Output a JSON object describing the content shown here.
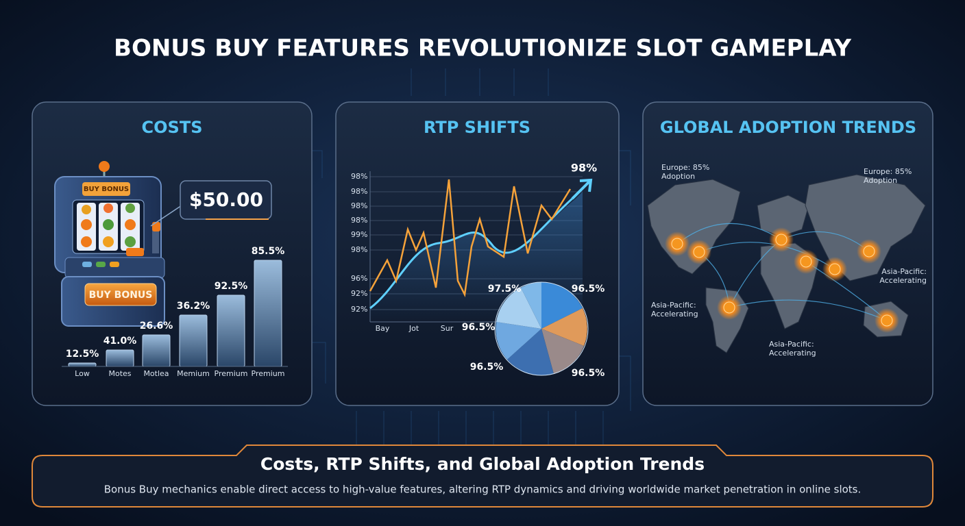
{
  "title": "BONUS BUY FEATURES REVOLUTIONIZE SLOT GAMEPLAY",
  "panels": [
    {
      "heading": "COSTS",
      "machine_sign": "BUY BONUS",
      "machine_button": "BUY BONUS",
      "price": "$50.00",
      "bars": [
        {
          "label": "12.5%",
          "category": "Low"
        },
        {
          "label": "41.0%",
          "category": "Motes"
        },
        {
          "label": "26.6%",
          "category": "Motlea"
        },
        {
          "label": "36.2%",
          "category": "Memium"
        },
        {
          "label": "92.5%",
          "category": "Premium"
        },
        {
          "label": "85.5%",
          "category": "Premium"
        }
      ]
    },
    {
      "heading": "RTP SHIFTS",
      "peak_label": "98%",
      "y_labels": [
        "98%",
        "98%",
        "98%",
        "98%",
        "99%",
        "98%",
        "96%",
        "92%",
        "92%"
      ],
      "x_labels": [
        "Bay",
        "Jot",
        "Sur"
      ],
      "pie_labels": [
        "97.5%",
        "96.5%",
        "96.5%",
        "96.5%",
        "96.5%"
      ]
    },
    {
      "heading": "GLOBAL ADOPTION TRENDS",
      "callouts": [
        {
          "line1": "Europe: 85%",
          "line2": "Adoption"
        },
        {
          "line1": "Europe: 85%",
          "line2": "Adoption"
        },
        {
          "line1": "Asia-Pacific:",
          "line2": "Accelerating"
        },
        {
          "line1": "Asia-Pacific:",
          "line2": "Accelerating"
        },
        {
          "line1": "Asia-Pacific:",
          "line2": "Accelerating"
        }
      ]
    }
  ],
  "footer": {
    "heading": "Costs, RTP Shifts, and Global Adoption Trends",
    "text": "Bonus Buy mechanics enable direct access to high-value features, altering RTP dynamics and driving worldwide market penetration in online slots."
  }
}
